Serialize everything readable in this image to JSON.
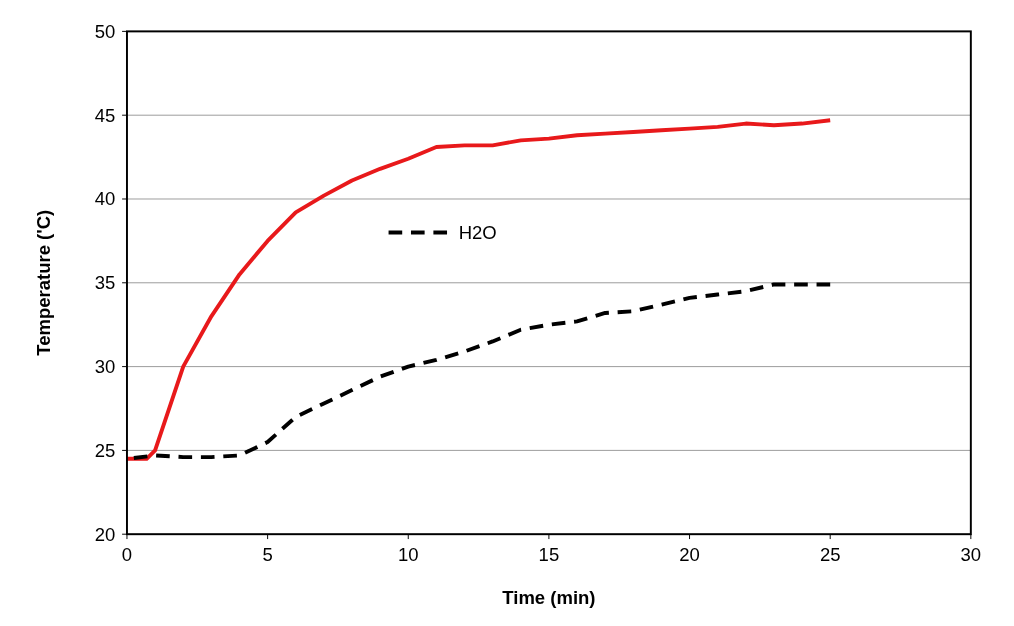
{
  "chart_data": {
    "type": "line",
    "xlabel": "Time  (min)",
    "ylabel": "Temperature ('C)",
    "xlim": [
      0,
      30
    ],
    "xticks": [
      0,
      5,
      10,
      15,
      20,
      25,
      30
    ],
    "ylim": [
      20,
      50
    ],
    "yticks": [
      20,
      25,
      30,
      35,
      40,
      45,
      50
    ],
    "grid": "y",
    "legend": "center",
    "series": [
      {
        "color": "#e8191b",
        "line_style": "solid",
        "x": [
          0,
          0.7,
          1,
          2,
          3,
          4,
          5,
          6,
          7,
          8,
          9,
          10,
          11,
          12,
          13,
          14,
          15,
          16,
          17,
          18,
          19,
          20,
          21,
          22,
          23,
          24,
          25
        ],
        "values": [
          24.5,
          24.5,
          25,
          30,
          33,
          35.5,
          37.5,
          39.2,
          40.2,
          41.1,
          41.8,
          42.4,
          43.1,
          43.2,
          43.2,
          43.5,
          43.6,
          43.8,
          43.9,
          44,
          44.1,
          44.2,
          44.3,
          44.5,
          44.4,
          44.5,
          44.7
        ]
      },
      {
        "name": "H2O",
        "color": "#000000",
        "line_style": "dashed",
        "x": [
          0,
          1,
          2,
          3,
          4,
          5,
          6,
          7,
          8,
          9,
          10,
          11,
          12,
          13,
          14,
          15,
          16,
          17,
          18,
          19,
          20,
          21,
          22,
          23,
          24,
          25
        ],
        "values": [
          24.5,
          24.7,
          24.6,
          24.6,
          24.7,
          25.5,
          27,
          27.8,
          28.6,
          29.4,
          30,
          30.4,
          30.9,
          31.5,
          32.2,
          32.5,
          32.7,
          33.2,
          33.3,
          33.7,
          34.1,
          34.3,
          34.5,
          34.9,
          34.9,
          34.9
        ]
      }
    ]
  }
}
